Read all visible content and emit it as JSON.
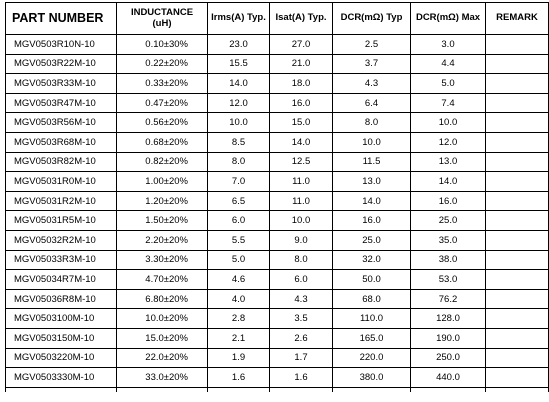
{
  "table": {
    "headers": {
      "part_number": "PART NUMBER",
      "inductance": "INDUCTANCE",
      "inductance_unit": "(uH)",
      "irms": "Irms(A) Typ.",
      "isat": "Isat(A) Typ.",
      "dcr_typ": "DCR(mΩ) Typ",
      "dcr_max": "DCR(mΩ) Max",
      "remark": "REMARK"
    },
    "rows": [
      {
        "part": "MGV0503R10N-10",
        "inductance": "0.10±30%",
        "irms": "23.0",
        "isat": "27.0",
        "dcr_typ": "2.5",
        "dcr_max": "3.0",
        "remark": ""
      },
      {
        "part": "MGV0503R22M-10",
        "inductance": "0.22±20%",
        "irms": "15.5",
        "isat": "21.0",
        "dcr_typ": "3.7",
        "dcr_max": "4.4",
        "remark": ""
      },
      {
        "part": "MGV0503R33M-10",
        "inductance": "0.33±20%",
        "irms": "14.0",
        "isat": "18.0",
        "dcr_typ": "4.3",
        "dcr_max": "5.0",
        "remark": ""
      },
      {
        "part": "MGV0503R47M-10",
        "inductance": "0.47±20%",
        "irms": "12.0",
        "isat": "16.0",
        "dcr_typ": "6.4",
        "dcr_max": "7.4",
        "remark": ""
      },
      {
        "part": "MGV0503R56M-10",
        "inductance": "0.56±20%",
        "irms": "10.0",
        "isat": "15.0",
        "dcr_typ": "8.0",
        "dcr_max": "10.0",
        "remark": ""
      },
      {
        "part": "MGV0503R68M-10",
        "inductance": "0.68±20%",
        "irms": "8.5",
        "isat": "14.0",
        "dcr_typ": "10.0",
        "dcr_max": "12.0",
        "remark": ""
      },
      {
        "part": "MGV0503R82M-10",
        "inductance": "0.82±20%",
        "irms": "8.0",
        "isat": "12.5",
        "dcr_typ": "11.5",
        "dcr_max": "13.0",
        "remark": ""
      },
      {
        "part": "MGV05031R0M-10",
        "inductance": "1.00±20%",
        "irms": "7.0",
        "isat": "11.0",
        "dcr_typ": "13.0",
        "dcr_max": "14.0",
        "remark": ""
      },
      {
        "part": "MGV05031R2M-10",
        "inductance": "1.20±20%",
        "irms": "6.5",
        "isat": "11.0",
        "dcr_typ": "14.0",
        "dcr_max": "16.0",
        "remark": ""
      },
      {
        "part": "MGV05031R5M-10",
        "inductance": "1.50±20%",
        "irms": "6.0",
        "isat": "10.0",
        "dcr_typ": "16.0",
        "dcr_max": "25.0",
        "remark": ""
      },
      {
        "part": "MGV05032R2M-10",
        "inductance": "2.20±20%",
        "irms": "5.5",
        "isat": "9.0",
        "dcr_typ": "25.0",
        "dcr_max": "35.0",
        "remark": ""
      },
      {
        "part": "MGV05033R3M-10",
        "inductance": "3.30±20%",
        "irms": "5.0",
        "isat": "8.0",
        "dcr_typ": "32.0",
        "dcr_max": "38.0",
        "remark": ""
      },
      {
        "part": "MGV05034R7M-10",
        "inductance": "4.70±20%",
        "irms": "4.6",
        "isat": "6.0",
        "dcr_typ": "50.0",
        "dcr_max": "53.0",
        "remark": ""
      },
      {
        "part": "MGV05036R8M-10",
        "inductance": "6.80±20%",
        "irms": "4.0",
        "isat": "4.3",
        "dcr_typ": "68.0",
        "dcr_max": "76.2",
        "remark": ""
      },
      {
        "part": "MGV0503100M-10",
        "inductance": "10.0±20%",
        "irms": "2.8",
        "isat": "3.5",
        "dcr_typ": "110.0",
        "dcr_max": "128.0",
        "remark": ""
      },
      {
        "part": "MGV0503150M-10",
        "inductance": "15.0±20%",
        "irms": "2.1",
        "isat": "2.6",
        "dcr_typ": "165.0",
        "dcr_max": "190.0",
        "remark": ""
      },
      {
        "part": "MGV0503220M-10",
        "inductance": "22.0±20%",
        "irms": "1.9",
        "isat": "1.7",
        "dcr_typ": "220.0",
        "dcr_max": "250.0",
        "remark": ""
      },
      {
        "part": "MGV0503330M-10",
        "inductance": "33.0±20%",
        "irms": "1.6",
        "isat": "1.6",
        "dcr_typ": "380.0",
        "dcr_max": "440.0",
        "remark": ""
      }
    ]
  }
}
